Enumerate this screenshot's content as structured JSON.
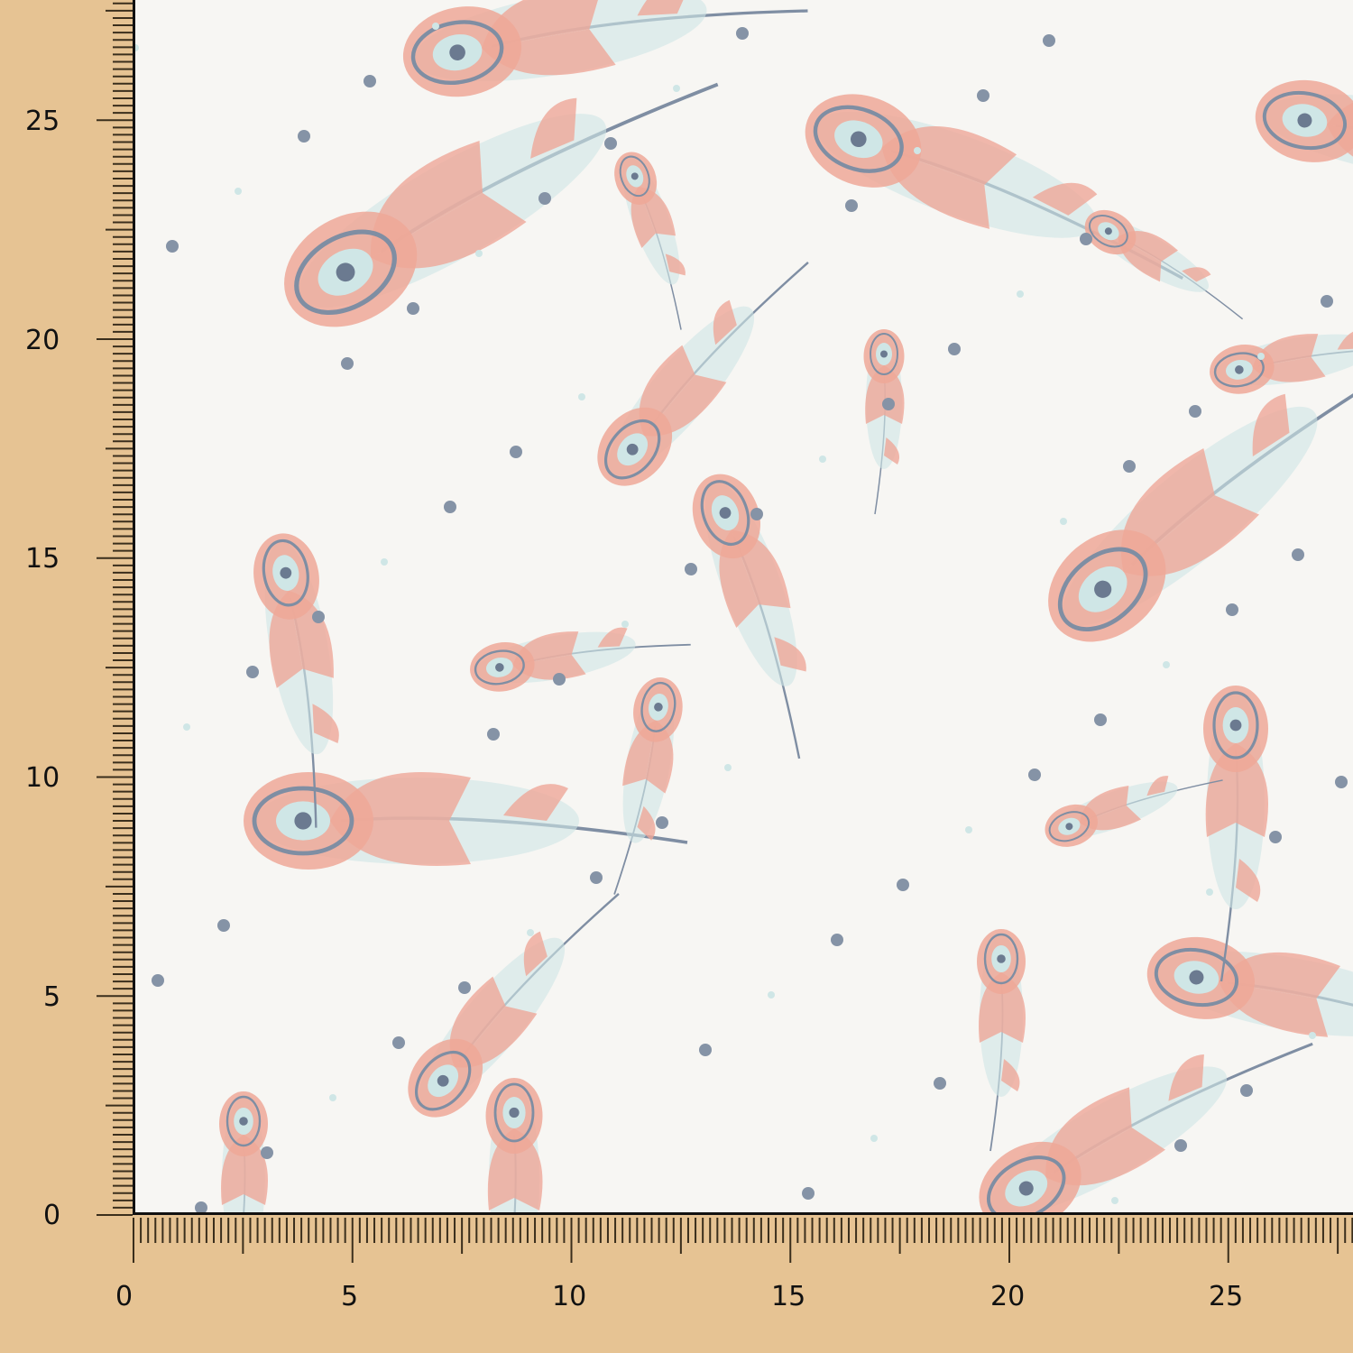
{
  "image": {
    "subject": "fabric",
    "pattern_colors": {
      "background": "#f7f6f3",
      "pink": "#eea898",
      "blue_gray": "#7f8ea3",
      "mint": "#cfe6e6"
    },
    "ruler_color": "#e6c393"
  },
  "ruler": {
    "vertical_labels": [
      "0",
      "5",
      "10",
      "15",
      "20",
      "25"
    ],
    "horizontal_labels": [
      "0",
      "5",
      "10",
      "15",
      "20",
      "25"
    ]
  }
}
